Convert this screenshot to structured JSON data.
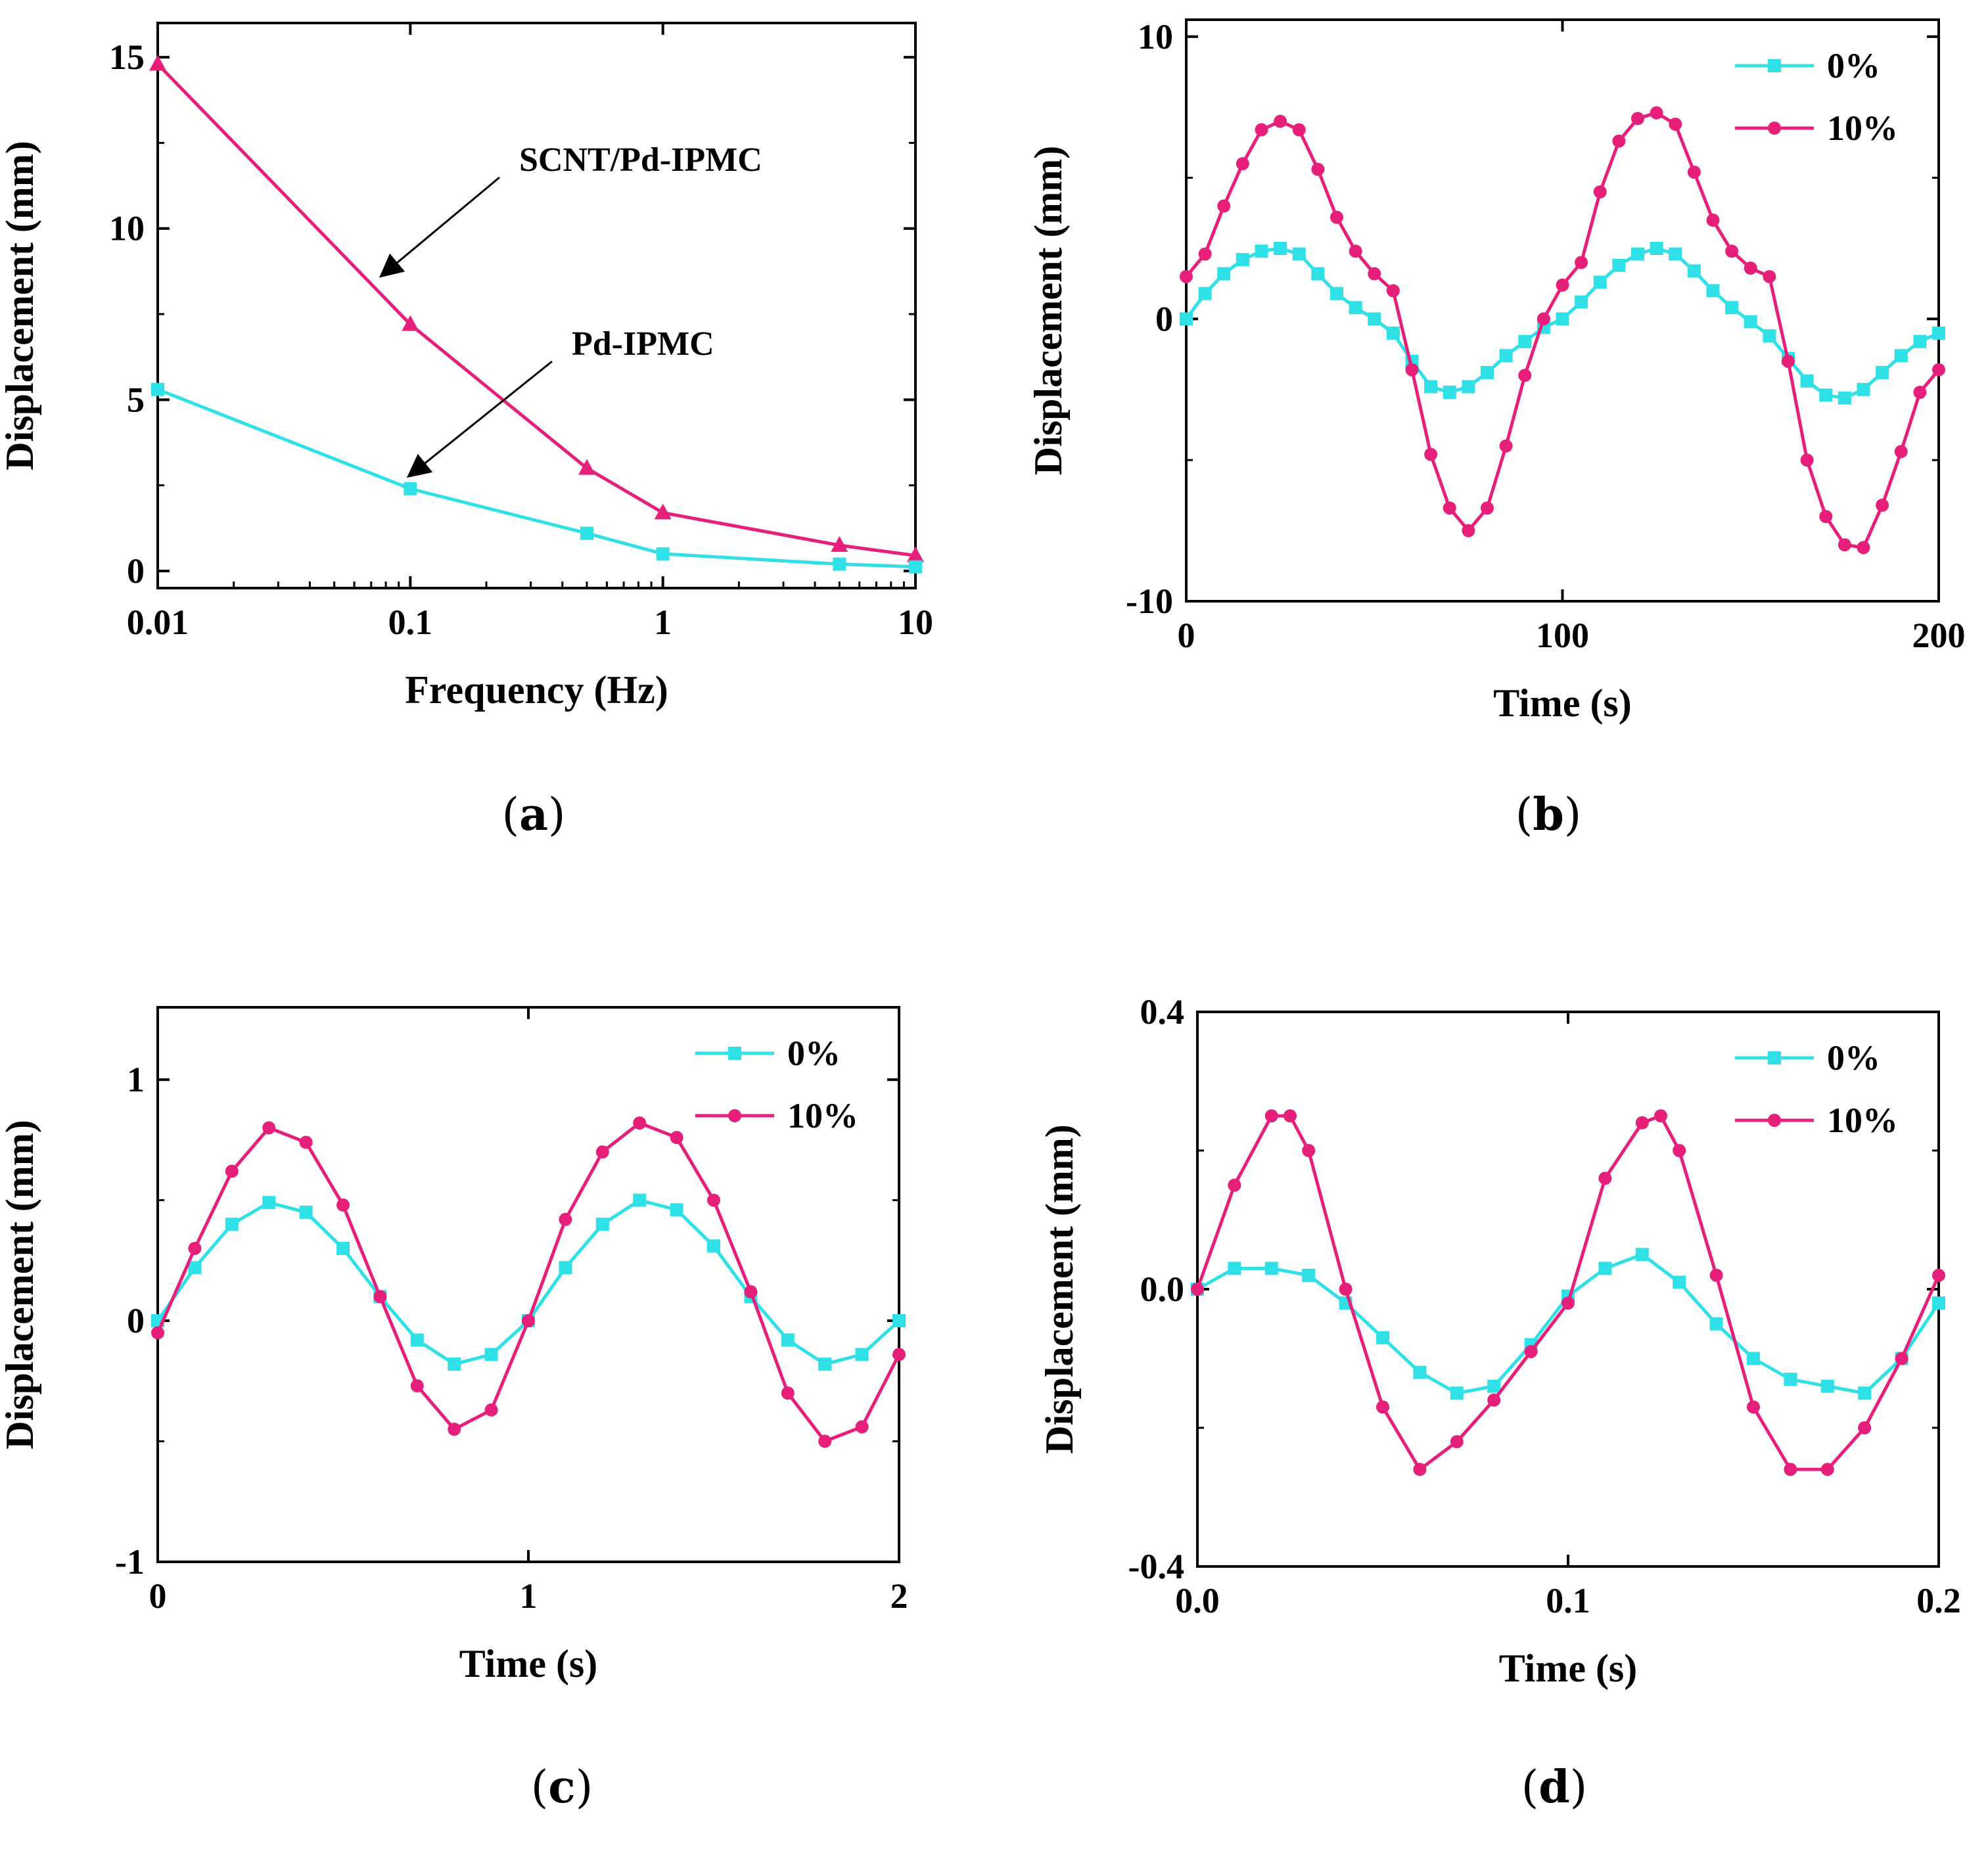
{
  "figure": {
    "captions": [
      "a",
      "b",
      "c",
      "d"
    ]
  },
  "chart_data": [
    {
      "id": "a",
      "type": "line",
      "xlabel": "Frequency (Hz)",
      "ylabel": "Displacement (mm)",
      "xscale": "log",
      "xlim": [
        0.01,
        10
      ],
      "ylim": [
        -0.5,
        16
      ],
      "xticks": [
        0.01,
        0.1,
        1,
        10
      ],
      "xtick_labels": [
        "0.01",
        "0.1",
        "1",
        "10"
      ],
      "yticks": [
        0,
        5,
        10,
        15
      ],
      "ytick_labels": [
        "0",
        "5",
        "10",
        "15"
      ],
      "legend": "none",
      "grid": false,
      "series": [
        {
          "name": "SCNT/Pd-IPMC",
          "color": "#e6207a",
          "marker": "triangle",
          "x": [
            0.01,
            0.1,
            0.5,
            1,
            5,
            10
          ],
          "y": [
            14.8,
            7.2,
            3.0,
            1.7,
            0.75,
            0.45
          ]
        },
        {
          "name": "Pd-IPMC",
          "color": "#2fe0e6",
          "marker": "square",
          "x": [
            0.01,
            0.1,
            0.5,
            1,
            5,
            10
          ],
          "y": [
            5.3,
            2.4,
            1.1,
            0.5,
            0.2,
            0.12
          ]
        }
      ],
      "annotations": [
        {
          "text": "SCNT/Pd-IPMC",
          "target_series": 0,
          "target_x": 0.07
        },
        {
          "text": "Pd-IPMC",
          "target_series": 1,
          "target_x": 0.09
        }
      ]
    },
    {
      "id": "b",
      "type": "line",
      "xlabel": "Time (s)",
      "ylabel": "Displacement (mm)",
      "xlim": [
        0,
        200
      ],
      "ylim": [
        -10,
        10.6
      ],
      "xticks": [
        0,
        100,
        200
      ],
      "xtick_labels": [
        "0",
        "100",
        "200"
      ],
      "yticks": [
        -10,
        0,
        10
      ],
      "ytick_labels": [
        "-10",
        "0",
        "10"
      ],
      "legend": "top-right",
      "grid": false,
      "series": [
        {
          "name": "0%",
          "color": "#2fe0e6",
          "marker": "square",
          "x": [
            0,
            5,
            10,
            15,
            20,
            25,
            30,
            35,
            40,
            45,
            50,
            55,
            60,
            65,
            70,
            75,
            80,
            85,
            90,
            95,
            100,
            105,
            110,
            115,
            120,
            125,
            130,
            135,
            140,
            145,
            150,
            155,
            160,
            165,
            170,
            175,
            180,
            185,
            190,
            195,
            200
          ],
          "y": [
            0,
            0.9,
            1.6,
            2.1,
            2.4,
            2.5,
            2.3,
            1.6,
            0.9,
            0.4,
            0.0,
            -0.5,
            -1.5,
            -2.4,
            -2.6,
            -2.4,
            -1.9,
            -1.3,
            -0.8,
            -0.3,
            0,
            0.6,
            1.3,
            1.9,
            2.3,
            2.5,
            2.3,
            1.7,
            1.0,
            0.4,
            -0.1,
            -0.6,
            -1.4,
            -2.2,
            -2.7,
            -2.8,
            -2.5,
            -1.9,
            -1.3,
            -0.8,
            -0.5
          ]
        },
        {
          "name": "10%",
          "color": "#e6207a",
          "marker": "circle",
          "x": [
            0,
            5,
            10,
            15,
            20,
            25,
            30,
            35,
            40,
            45,
            50,
            55,
            60,
            65,
            70,
            75,
            80,
            85,
            90,
            95,
            100,
            105,
            110,
            115,
            120,
            125,
            130,
            135,
            140,
            145,
            150,
            155,
            160,
            165,
            170,
            175,
            180,
            185,
            190,
            195,
            200
          ],
          "y": [
            1.5,
            2.3,
            4.0,
            5.5,
            6.7,
            7.0,
            6.7,
            5.3,
            3.6,
            2.4,
            1.6,
            1.0,
            -1.8,
            -4.8,
            -6.7,
            -7.5,
            -6.7,
            -4.5,
            -2.0,
            0.0,
            1.2,
            2.0,
            4.5,
            6.3,
            7.1,
            7.3,
            6.9,
            5.2,
            3.5,
            2.4,
            1.8,
            1.5,
            -1.5,
            -5.0,
            -7.0,
            -8.0,
            -8.1,
            -6.6,
            -4.7,
            -2.6,
            -1.8
          ]
        }
      ]
    },
    {
      "id": "c",
      "type": "line",
      "xlabel": "Time (s)",
      "ylabel": "Displacement (mm)",
      "xlim": [
        0,
        2
      ],
      "ylim": [
        -1,
        1.3
      ],
      "xticks": [
        0,
        1,
        2
      ],
      "xtick_labels": [
        "0",
        "1",
        "2"
      ],
      "yticks": [
        -1,
        0,
        1
      ],
      "ytick_labels": [
        "-1",
        "0",
        "1"
      ],
      "legend": "top-right",
      "grid": false,
      "series": [
        {
          "name": "0%",
          "color": "#2fe0e6",
          "marker": "square",
          "x": [
            0,
            0.1,
            0.2,
            0.3,
            0.4,
            0.5,
            0.6,
            0.7,
            0.8,
            0.9,
            1.0,
            1.1,
            1.2,
            1.3,
            1.4,
            1.5,
            1.6,
            1.7,
            1.8,
            1.9,
            2.0
          ],
          "y": [
            0,
            0.22,
            0.4,
            0.49,
            0.45,
            0.3,
            0.1,
            -0.08,
            -0.18,
            -0.14,
            0.0,
            0.22,
            0.4,
            0.5,
            0.46,
            0.31,
            0.1,
            -0.08,
            -0.18,
            -0.14,
            0.0
          ]
        },
        {
          "name": "10%",
          "color": "#e6207a",
          "marker": "circle",
          "x": [
            0,
            0.1,
            0.2,
            0.3,
            0.4,
            0.5,
            0.6,
            0.7,
            0.8,
            0.9,
            1.0,
            1.1,
            1.2,
            1.3,
            1.4,
            1.5,
            1.6,
            1.7,
            1.8,
            1.9,
            2.0
          ],
          "y": [
            -0.05,
            0.3,
            0.62,
            0.8,
            0.74,
            0.48,
            0.1,
            -0.27,
            -0.45,
            -0.37,
            0.0,
            0.42,
            0.7,
            0.82,
            0.76,
            0.5,
            0.12,
            -0.3,
            -0.5,
            -0.44,
            -0.14
          ]
        }
      ]
    },
    {
      "id": "d",
      "type": "line",
      "xlabel": "Time (s)",
      "ylabel": "Displacement (mm)",
      "xlim": [
        0,
        0.2
      ],
      "ylim": [
        -0.4,
        0.4
      ],
      "xticks": [
        0,
        0.1,
        0.2
      ],
      "xtick_labels": [
        "0.0",
        "0.1",
        "0.2"
      ],
      "yticks": [
        -0.4,
        0,
        0.4
      ],
      "ytick_labels": [
        "-0.4",
        "0.0",
        "0.4"
      ],
      "legend": "top-right",
      "grid": false,
      "series": [
        {
          "name": "0%",
          "color": "#2fe0e6",
          "marker": "square",
          "x": [
            0,
            0.01,
            0.02,
            0.03,
            0.04,
            0.05,
            0.06,
            0.07,
            0.08,
            0.09,
            0.1,
            0.11,
            0.12,
            0.13,
            0.14,
            0.15,
            0.16,
            0.17,
            0.18,
            0.19,
            0.2
          ],
          "y": [
            0.0,
            0.03,
            0.03,
            0.02,
            -0.02,
            -0.07,
            -0.12,
            -0.15,
            -0.14,
            -0.08,
            -0.01,
            0.03,
            0.05,
            0.01,
            -0.05,
            -0.1,
            -0.13,
            -0.14,
            -0.15,
            -0.1,
            -0.02
          ]
        },
        {
          "name": "10%",
          "color": "#e6207a",
          "marker": "circle",
          "x": [
            0,
            0.01,
            0.02,
            0.025,
            0.03,
            0.04,
            0.05,
            0.06,
            0.07,
            0.08,
            0.09,
            0.1,
            0.11,
            0.12,
            0.125,
            0.13,
            0.14,
            0.15,
            0.16,
            0.17,
            0.18,
            0.19,
            0.2
          ],
          "y": [
            0.0,
            0.15,
            0.25,
            0.25,
            0.2,
            0.0,
            -0.17,
            -0.26,
            -0.22,
            -0.16,
            -0.09,
            -0.02,
            0.16,
            0.24,
            0.25,
            0.2,
            0.02,
            -0.17,
            -0.26,
            -0.26,
            -0.2,
            -0.1,
            0.02
          ]
        }
      ]
    }
  ]
}
